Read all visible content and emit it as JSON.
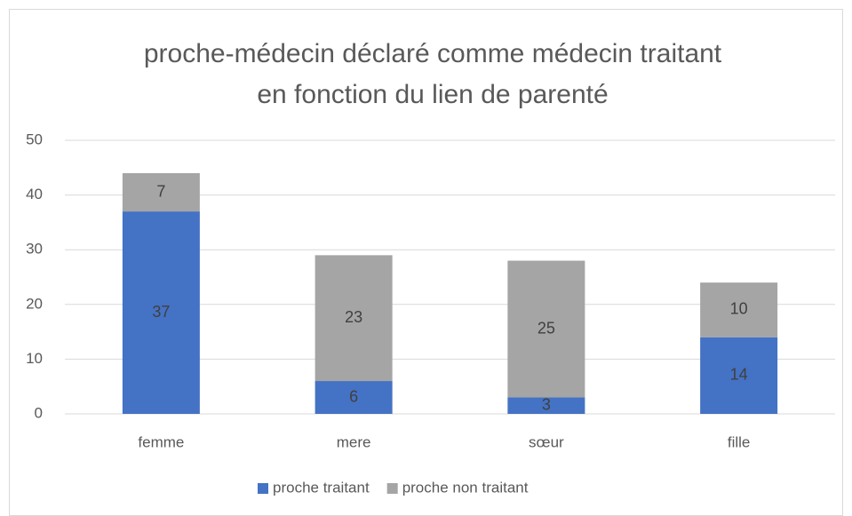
{
  "chart_data": {
    "type": "stacked_bar",
    "title": [
      "proche-médecin déclaré comme médecin traitant",
      "en fonction du lien de parenté"
    ],
    "categories": [
      "femme",
      "mere",
      "sœur",
      "fille"
    ],
    "series": [
      {
        "name": "proche traitant",
        "color": "#4472c4",
        "values": [
          37,
          6,
          3,
          14
        ]
      },
      {
        "name": "proche non traitant",
        "color": "#a5a5a5",
        "values": [
          7,
          23,
          25,
          10
        ]
      }
    ],
    "ylim": [
      0,
      50
    ],
    "yticks": [
      0,
      10,
      20,
      30,
      40,
      50
    ],
    "grid": true,
    "legend": "bottom"
  }
}
